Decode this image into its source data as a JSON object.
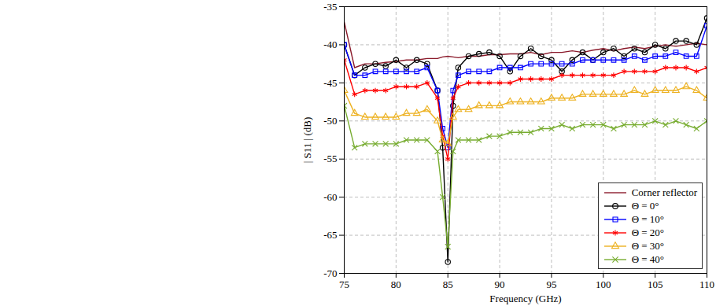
{
  "chart_data": {
    "type": "line",
    "xlabel": "Frequency (GHz)",
    "ylabel": "| S11 | (dB)",
    "x": [
      75,
      76,
      77,
      78,
      79,
      80,
      81,
      82,
      83,
      84,
      84.5,
      85,
      85.5,
      86,
      87,
      88,
      89,
      90,
      91,
      92,
      93,
      94,
      95,
      96,
      97,
      98,
      99,
      100,
      101,
      102,
      103,
      104,
      105,
      106,
      107,
      108,
      109,
      110
    ],
    "xlim": [
      75,
      110
    ],
    "xticks": [
      75,
      80,
      85,
      90,
      95,
      100,
      105,
      110
    ],
    "ylim": [
      -70,
      -35
    ],
    "yticks": [
      -70,
      -65,
      -60,
      -55,
      -50,
      -45,
      -40,
      -35
    ],
    "grid": true,
    "legend": "bottom-right",
    "series": [
      {
        "name": "Corner reflector",
        "color": "#8b1a2b",
        "marker": "none",
        "values": [
          -37,
          -43,
          -42.5,
          -42.5,
          -42.3,
          -42.2,
          -42,
          -42,
          -41.8,
          -41.8,
          -41.6,
          -41.5,
          -41.6,
          -41.7,
          -41.5,
          -41.5,
          -41.3,
          -41.3,
          -41.2,
          -41.2,
          -41,
          -41.3,
          -41,
          -41,
          -40.8,
          -41,
          -40.7,
          -40.5,
          -40.8,
          -40.5,
          -40.3,
          -40.5,
          -40.2,
          -40,
          -40.2,
          -40,
          -39.8,
          -40
        ]
      },
      {
        "name": "Θ = 0°",
        "color": "#000000",
        "marker": "circle",
        "values": [
          -40,
          -44,
          -43,
          -42.5,
          -42.8,
          -42,
          -43,
          -42,
          -42.5,
          -46,
          -53.5,
          -68.5,
          -48,
          -43,
          -41.5,
          -41.2,
          -41,
          -41.5,
          -43.5,
          -41.5,
          -40.5,
          -41.5,
          -42,
          -43.5,
          -42,
          -41,
          -42,
          -41,
          -40.5,
          -41.5,
          -40.5,
          -41,
          -40,
          -40.5,
          -39.5,
          -39.5,
          -40,
          -36.5
        ]
      },
      {
        "name": "Θ = 10°",
        "color": "#0000ff",
        "marker": "square",
        "values": [
          -40,
          -44,
          -44,
          -43.5,
          -43.5,
          -43.5,
          -43.5,
          -43.5,
          -43,
          -46,
          -51,
          -53.5,
          -46,
          -44,
          -43.5,
          -43.5,
          -43.5,
          -43,
          -43,
          -43,
          -42.5,
          -42.5,
          -42.5,
          -42.5,
          -42.5,
          -42,
          -42,
          -42,
          -42,
          -42,
          -41.5,
          -42,
          -41.5,
          -41.5,
          -41,
          -41.5,
          -41.5,
          -37.5
        ]
      },
      {
        "name": "Θ = 20°",
        "color": "#ff0000",
        "marker": "asterisk",
        "values": [
          -42,
          -46.5,
          -46,
          -46,
          -46,
          -45.5,
          -45.5,
          -45.5,
          -45,
          -47,
          -52,
          -55,
          -47,
          -45.5,
          -45,
          -45,
          -45,
          -45,
          -45,
          -44.5,
          -44.5,
          -44.5,
          -44.5,
          -44,
          -44,
          -44,
          -44,
          -44,
          -44,
          -43.5,
          -43.5,
          -43.5,
          -43.5,
          -43,
          -43,
          -43,
          -43.5,
          -43
        ]
      },
      {
        "name": "Θ = 30°",
        "color": "#edb120",
        "marker": "triangle",
        "values": [
          -46,
          -49,
          -49.5,
          -49.5,
          -49.5,
          -49.5,
          -49,
          -49,
          -48.5,
          -50,
          -52.5,
          -53,
          -49.5,
          -48.5,
          -48.5,
          -48,
          -48,
          -48,
          -47.5,
          -47.5,
          -47.5,
          -47.5,
          -47,
          -47,
          -47,
          -46.5,
          -46.5,
          -46.5,
          -46.5,
          -46.5,
          -46,
          -46.5,
          -46,
          -46,
          -46,
          -45.5,
          -46,
          -47
        ]
      },
      {
        "name": "Θ = 40°",
        "color": "#77ac30",
        "marker": "times",
        "values": [
          -48,
          -53.5,
          -53,
          -53,
          -53,
          -53,
          -52.5,
          -52.5,
          -52.5,
          -54,
          -60,
          -66.5,
          -54,
          -52.5,
          -52.5,
          -52.5,
          -52,
          -52,
          -51.5,
          -51.5,
          -51.5,
          -51,
          -51,
          -50.5,
          -51,
          -50.5,
          -50.5,
          -50.5,
          -51,
          -50.5,
          -50.5,
          -50.5,
          -50,
          -50.5,
          -50,
          -50.5,
          -51,
          -50
        ]
      }
    ]
  }
}
